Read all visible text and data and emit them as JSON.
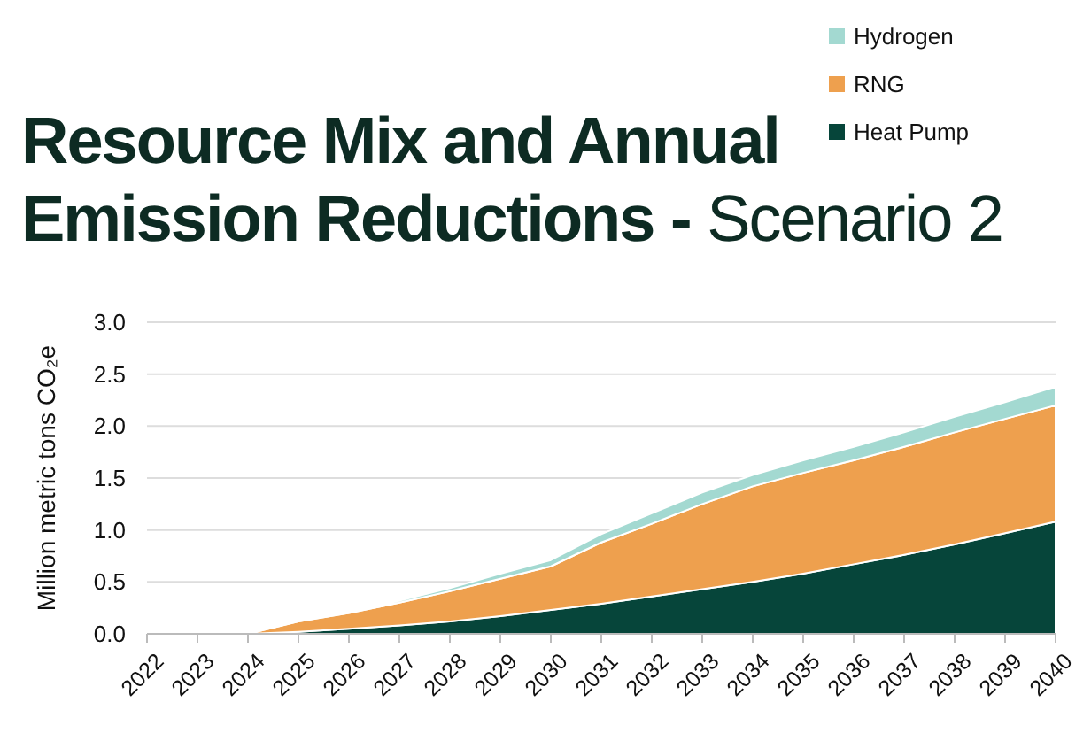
{
  "chart_data": {
    "type": "area",
    "stacked": true,
    "title": "Resource Mix and Annual Emission Reductions -",
    "subtitle": "Scenario 2",
    "ylabel": "Million metric tons CO₂e",
    "categories": [
      "2022",
      "2023",
      "2024",
      "2025",
      "2026",
      "2027",
      "2028",
      "2029",
      "2030",
      "2031",
      "2032",
      "2033",
      "2034",
      "2035",
      "2036",
      "2037",
      "2038",
      "2039",
      "2040"
    ],
    "series": [
      {
        "name": "Heat Pump",
        "color": "#06453a",
        "values": [
          0,
          0,
          0,
          0.02,
          0.05,
          0.08,
          0.12,
          0.17,
          0.23,
          0.29,
          0.36,
          0.43,
          0.5,
          0.58,
          0.67,
          0.76,
          0.86,
          0.97,
          1.08
        ]
      },
      {
        "name": "RNG",
        "color": "#eea04e",
        "values": [
          0,
          0,
          0,
          0.1,
          0.15,
          0.22,
          0.29,
          0.36,
          0.42,
          0.59,
          0.7,
          0.82,
          0.92,
          0.97,
          1.0,
          1.04,
          1.08,
          1.1,
          1.12
        ]
      },
      {
        "name": "Hydrogen",
        "color": "#a3d9d1",
        "values": [
          0,
          0,
          0,
          0,
          0.01,
          0.02,
          0.03,
          0.05,
          0.06,
          0.08,
          0.1,
          0.11,
          0.11,
          0.12,
          0.13,
          0.14,
          0.15,
          0.16,
          0.18
        ]
      }
    ],
    "ylim": [
      0,
      3
    ],
    "yticks": [
      {
        "value": 0,
        "label": "0.0"
      },
      {
        "value": 0.5,
        "label": "0.5"
      },
      {
        "value": 1,
        "label": "1.0"
      },
      {
        "value": 1.5,
        "label": "1.5"
      },
      {
        "value": 2,
        "label": "2.0"
      },
      {
        "value": 2.5,
        "label": "2.5"
      },
      {
        "value": 3,
        "label": "3.0"
      }
    ],
    "grid": "y",
    "legend": "top right"
  }
}
